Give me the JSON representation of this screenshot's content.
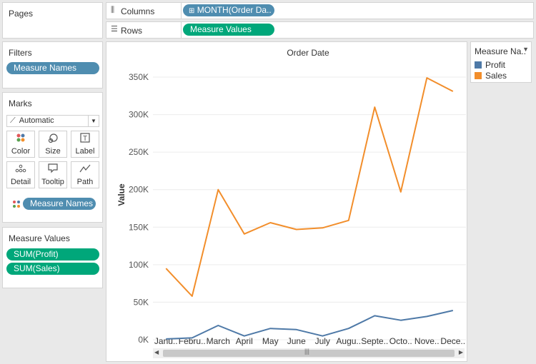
{
  "pages": {
    "title": "Pages"
  },
  "filters": {
    "title": "Filters",
    "pill": "Measure Names"
  },
  "marks": {
    "title": "Marks",
    "type_select": "Automatic",
    "buttons": [
      {
        "label": "Color",
        "icon": "color-icon"
      },
      {
        "label": "Size",
        "icon": "size-icon"
      },
      {
        "label": "Label",
        "icon": "label-icon"
      },
      {
        "label": "Detail",
        "icon": "detail-icon"
      },
      {
        "label": "Tooltip",
        "icon": "tooltip-icon"
      },
      {
        "label": "Path",
        "icon": "path-icon"
      }
    ],
    "color_pill": "Measure Names"
  },
  "measure_values": {
    "title": "Measure Values",
    "pills": [
      "SUM(Profit)",
      "SUM(Sales)"
    ]
  },
  "shelves": {
    "columns_label": "Columns",
    "columns_pill": "MONTH(Order Da..",
    "rows_label": "Rows",
    "rows_pill": "Measure Values"
  },
  "legend": {
    "title": "Measure Na..",
    "items": [
      {
        "label": "Profit",
        "color": "#4e79a7"
      },
      {
        "label": "Sales",
        "color": "#f28e2b"
      }
    ]
  },
  "chart_data": {
    "type": "line",
    "title": "Order Date",
    "ylabel": "Value",
    "xlabel": "",
    "categories": [
      "Janu..",
      "Febru..",
      "March",
      "April",
      "May",
      "June",
      "July",
      "Augu..",
      "Septe..",
      "Octo..",
      "Nove..",
      "Dece.."
    ],
    "ylim": [
      0,
      370000
    ],
    "yticks": [
      0,
      50000,
      100000,
      150000,
      200000,
      250000,
      300000,
      350000
    ],
    "ytick_labels": [
      "0K",
      "50K",
      "100K",
      "150K",
      "200K",
      "250K",
      "300K",
      "350K"
    ],
    "series": [
      {
        "name": "Profit",
        "color": "#4e79a7",
        "values": [
          1000,
          2500,
          19000,
          5000,
          15000,
          13500,
          5000,
          15000,
          32000,
          26000,
          31000,
          39000
        ]
      },
      {
        "name": "Sales",
        "color": "#f28e2b",
        "values": [
          95000,
          58000,
          200000,
          141000,
          156000,
          147000,
          149000,
          159000,
          310000,
          197000,
          349000,
          331000
        ]
      }
    ],
    "grid": true
  }
}
